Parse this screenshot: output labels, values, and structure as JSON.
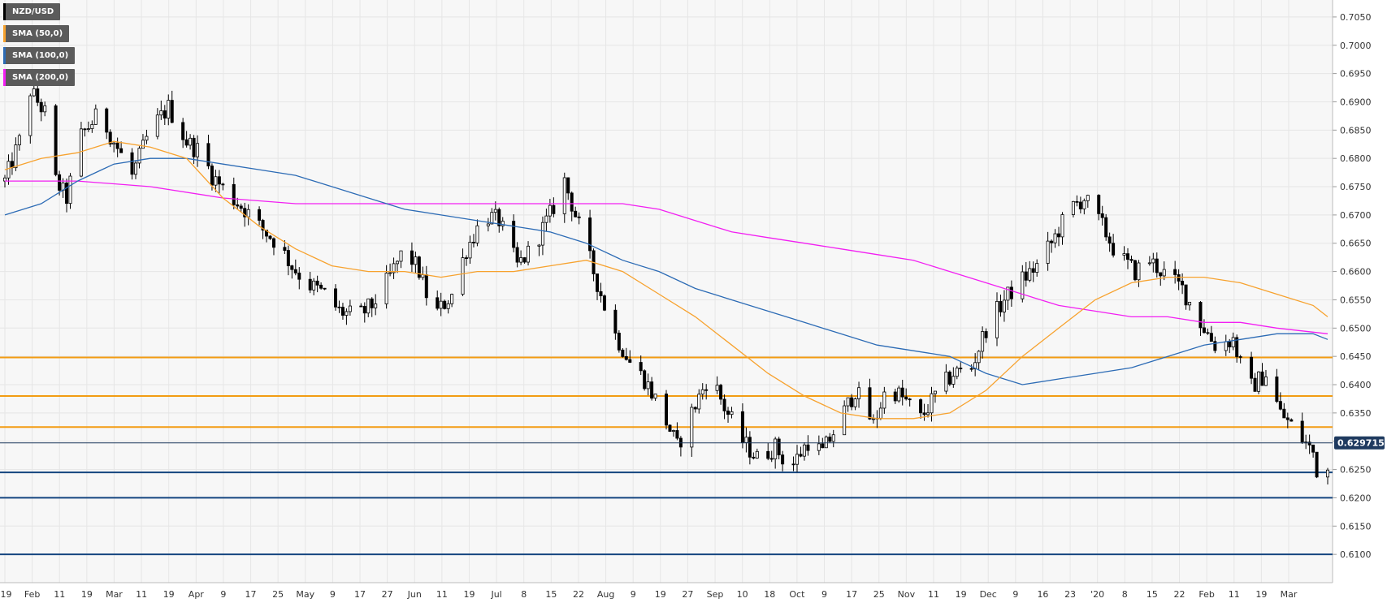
{
  "chart_data": {
    "type": "candlestick",
    "symbol": "NZD/USD",
    "ylim": [
      0.605,
      0.708
    ],
    "y_ticks": [
      "0.7050",
      "0.7000",
      "0.6950",
      "0.6900",
      "0.6850",
      "0.6800",
      "0.6750",
      "0.6700",
      "0.6650",
      "0.6600",
      "0.6550",
      "0.6500",
      "0.6450",
      "0.6400",
      "0.6350",
      "0.6300",
      "0.6250",
      "0.6200",
      "0.6150",
      "0.6100"
    ],
    "x_ticks": [
      "'19",
      "Feb",
      "11",
      "19",
      "Mar",
      "11",
      "19",
      "Apr",
      "9",
      "17",
      "25",
      "May",
      "9",
      "17",
      "27",
      "Jun",
      "11",
      "19",
      "Jul",
      "8",
      "15",
      "22",
      "Aug",
      "9",
      "19",
      "27",
      "Sep",
      "10",
      "18",
      "Oct",
      "9",
      "17",
      "25",
      "Nov",
      "11",
      "19",
      "Dec",
      "9",
      "16",
      "23",
      "'20",
      "8",
      "15",
      "22",
      "Feb",
      "11",
      "19",
      "Mar"
    ],
    "current_price": "0.629715",
    "colors": {
      "up": "#ffffff",
      "down": "#000000",
      "sma50": "#f7a22e",
      "sma100": "#2c6bb5",
      "sma200": "#f21ff2",
      "resistance": "#f39c12",
      "support": "#14457f",
      "grid": "#e6e6e6",
      "background": "#f7f7f7"
    },
    "legend": [
      {
        "label": "NZD/USD",
        "color": "#000000"
      },
      {
        "label": "SMA (50,0)",
        "color": "#f7a22e"
      },
      {
        "label": "SMA (100,0)",
        "color": "#2c6bb5"
      },
      {
        "label": "SMA (200,0)",
        "color": "#f21ff2"
      }
    ],
    "horizontal_levels": [
      {
        "value": 0.6448,
        "kind": "resistance"
      },
      {
        "value": 0.638,
        "kind": "resistance"
      },
      {
        "value": 0.6325,
        "kind": "resistance"
      },
      {
        "value": 0.6245,
        "kind": "support"
      },
      {
        "value": 0.62,
        "kind": "support"
      },
      {
        "value": 0.61,
        "kind": "support"
      }
    ],
    "price_anchors": [
      [
        0,
        0.676
      ],
      [
        4,
        0.683
      ],
      [
        7,
        0.692
      ],
      [
        11,
        0.688
      ],
      [
        14,
        0.676
      ],
      [
        17,
        0.673
      ],
      [
        21,
        0.684
      ],
      [
        26,
        0.688
      ],
      [
        30,
        0.683
      ],
      [
        35,
        0.677
      ],
      [
        40,
        0.685
      ],
      [
        45,
        0.689
      ],
      [
        50,
        0.683
      ],
      [
        54,
        0.681
      ],
      [
        57,
        0.677
      ],
      [
        61,
        0.674
      ],
      [
        66,
        0.671
      ],
      [
        70,
        0.668
      ],
      [
        75,
        0.665
      ],
      [
        79,
        0.661
      ],
      [
        83,
        0.658
      ],
      [
        88,
        0.656
      ],
      [
        92,
        0.653
      ],
      [
        97,
        0.652
      ],
      [
        101,
        0.654
      ],
      [
        105,
        0.658
      ],
      [
        110,
        0.664
      ],
      [
        114,
        0.66
      ],
      [
        118,
        0.652
      ],
      [
        123,
        0.656
      ],
      [
        127,
        0.664
      ],
      [
        132,
        0.67
      ],
      [
        136,
        0.669
      ],
      [
        141,
        0.661
      ],
      [
        145,
        0.664
      ],
      [
        150,
        0.67
      ],
      [
        154,
        0.676
      ],
      [
        158,
        0.668
      ],
      [
        163,
        0.658
      ],
      [
        167,
        0.65
      ],
      [
        172,
        0.644
      ],
      [
        176,
        0.641
      ],
      [
        181,
        0.635
      ],
      [
        185,
        0.629
      ],
      [
        189,
        0.635
      ],
      [
        194,
        0.642
      ],
      [
        198,
        0.636
      ],
      [
        203,
        0.63
      ],
      [
        207,
        0.627
      ],
      [
        212,
        0.629
      ],
      [
        216,
        0.625
      ],
      [
        221,
        0.63
      ],
      [
        225,
        0.628
      ],
      [
        230,
        0.634
      ],
      [
        234,
        0.639
      ],
      [
        239,
        0.633
      ],
      [
        243,
        0.64
      ],
      [
        248,
        0.637
      ],
      [
        252,
        0.634
      ],
      [
        257,
        0.639
      ],
      [
        261,
        0.642
      ],
      [
        266,
        0.643
      ],
      [
        270,
        0.65
      ],
      [
        275,
        0.655
      ],
      [
        279,
        0.658
      ],
      [
        284,
        0.661
      ],
      [
        288,
        0.665
      ],
      [
        293,
        0.671
      ],
      [
        297,
        0.673
      ],
      [
        302,
        0.668
      ],
      [
        306,
        0.663
      ],
      [
        311,
        0.66
      ],
      [
        315,
        0.662
      ],
      [
        320,
        0.659
      ],
      [
        324,
        0.657
      ],
      [
        329,
        0.651
      ],
      [
        333,
        0.647
      ],
      [
        338,
        0.648
      ],
      [
        342,
        0.639
      ],
      [
        347,
        0.642
      ],
      [
        351,
        0.635
      ],
      [
        355,
        0.632
      ],
      [
        360,
        0.628
      ],
      [
        362,
        0.622
      ],
      [
        364,
        0.625
      ]
    ],
    "sma50": [
      [
        0,
        0.678
      ],
      [
        10,
        0.68
      ],
      [
        20,
        0.681
      ],
      [
        30,
        0.683
      ],
      [
        40,
        0.682
      ],
      [
        50,
        0.68
      ],
      [
        60,
        0.673
      ],
      [
        70,
        0.668
      ],
      [
        80,
        0.664
      ],
      [
        90,
        0.661
      ],
      [
        100,
        0.66
      ],
      [
        110,
        0.66
      ],
      [
        120,
        0.659
      ],
      [
        130,
        0.66
      ],
      [
        140,
        0.66
      ],
      [
        150,
        0.661
      ],
      [
        160,
        0.662
      ],
      [
        170,
        0.66
      ],
      [
        180,
        0.656
      ],
      [
        190,
        0.652
      ],
      [
        200,
        0.647
      ],
      [
        210,
        0.642
      ],
      [
        220,
        0.638
      ],
      [
        230,
        0.635
      ],
      [
        240,
        0.634
      ],
      [
        250,
        0.634
      ],
      [
        260,
        0.635
      ],
      [
        270,
        0.639
      ],
      [
        280,
        0.645
      ],
      [
        290,
        0.65
      ],
      [
        300,
        0.655
      ],
      [
        310,
        0.658
      ],
      [
        320,
        0.659
      ],
      [
        330,
        0.659
      ],
      [
        340,
        0.658
      ],
      [
        350,
        0.656
      ],
      [
        360,
        0.654
      ],
      [
        364,
        0.652
      ]
    ],
    "sma100": [
      [
        0,
        0.67
      ],
      [
        10,
        0.672
      ],
      [
        20,
        0.676
      ],
      [
        30,
        0.679
      ],
      [
        40,
        0.68
      ],
      [
        50,
        0.68
      ],
      [
        60,
        0.679
      ],
      [
        70,
        0.678
      ],
      [
        80,
        0.677
      ],
      [
        90,
        0.675
      ],
      [
        100,
        0.673
      ],
      [
        110,
        0.671
      ],
      [
        120,
        0.67
      ],
      [
        130,
        0.669
      ],
      [
        140,
        0.668
      ],
      [
        150,
        0.667
      ],
      [
        160,
        0.665
      ],
      [
        170,
        0.662
      ],
      [
        180,
        0.66
      ],
      [
        190,
        0.657
      ],
      [
        200,
        0.655
      ],
      [
        210,
        0.653
      ],
      [
        220,
        0.651
      ],
      [
        230,
        0.649
      ],
      [
        240,
        0.647
      ],
      [
        250,
        0.646
      ],
      [
        260,
        0.645
      ],
      [
        270,
        0.642
      ],
      [
        280,
        0.64
      ],
      [
        290,
        0.641
      ],
      [
        300,
        0.642
      ],
      [
        310,
        0.643
      ],
      [
        320,
        0.645
      ],
      [
        330,
        0.647
      ],
      [
        340,
        0.648
      ],
      [
        350,
        0.649
      ],
      [
        360,
        0.649
      ],
      [
        364,
        0.648
      ]
    ],
    "sma200": [
      [
        0,
        0.676
      ],
      [
        20,
        0.676
      ],
      [
        40,
        0.675
      ],
      [
        60,
        0.673
      ],
      [
        80,
        0.672
      ],
      [
        100,
        0.672
      ],
      [
        120,
        0.672
      ],
      [
        140,
        0.672
      ],
      [
        160,
        0.672
      ],
      [
        170,
        0.672
      ],
      [
        180,
        0.671
      ],
      [
        190,
        0.669
      ],
      [
        200,
        0.667
      ],
      [
        210,
        0.666
      ],
      [
        220,
        0.665
      ],
      [
        230,
        0.664
      ],
      [
        240,
        0.663
      ],
      [
        250,
        0.662
      ],
      [
        260,
        0.66
      ],
      [
        270,
        0.658
      ],
      [
        280,
        0.656
      ],
      [
        290,
        0.654
      ],
      [
        300,
        0.653
      ],
      [
        310,
        0.652
      ],
      [
        320,
        0.652
      ],
      [
        330,
        0.651
      ],
      [
        340,
        0.651
      ],
      [
        350,
        0.65
      ],
      [
        364,
        0.649
      ]
    ],
    "grid": true,
    "legend_placement": "top-left"
  }
}
